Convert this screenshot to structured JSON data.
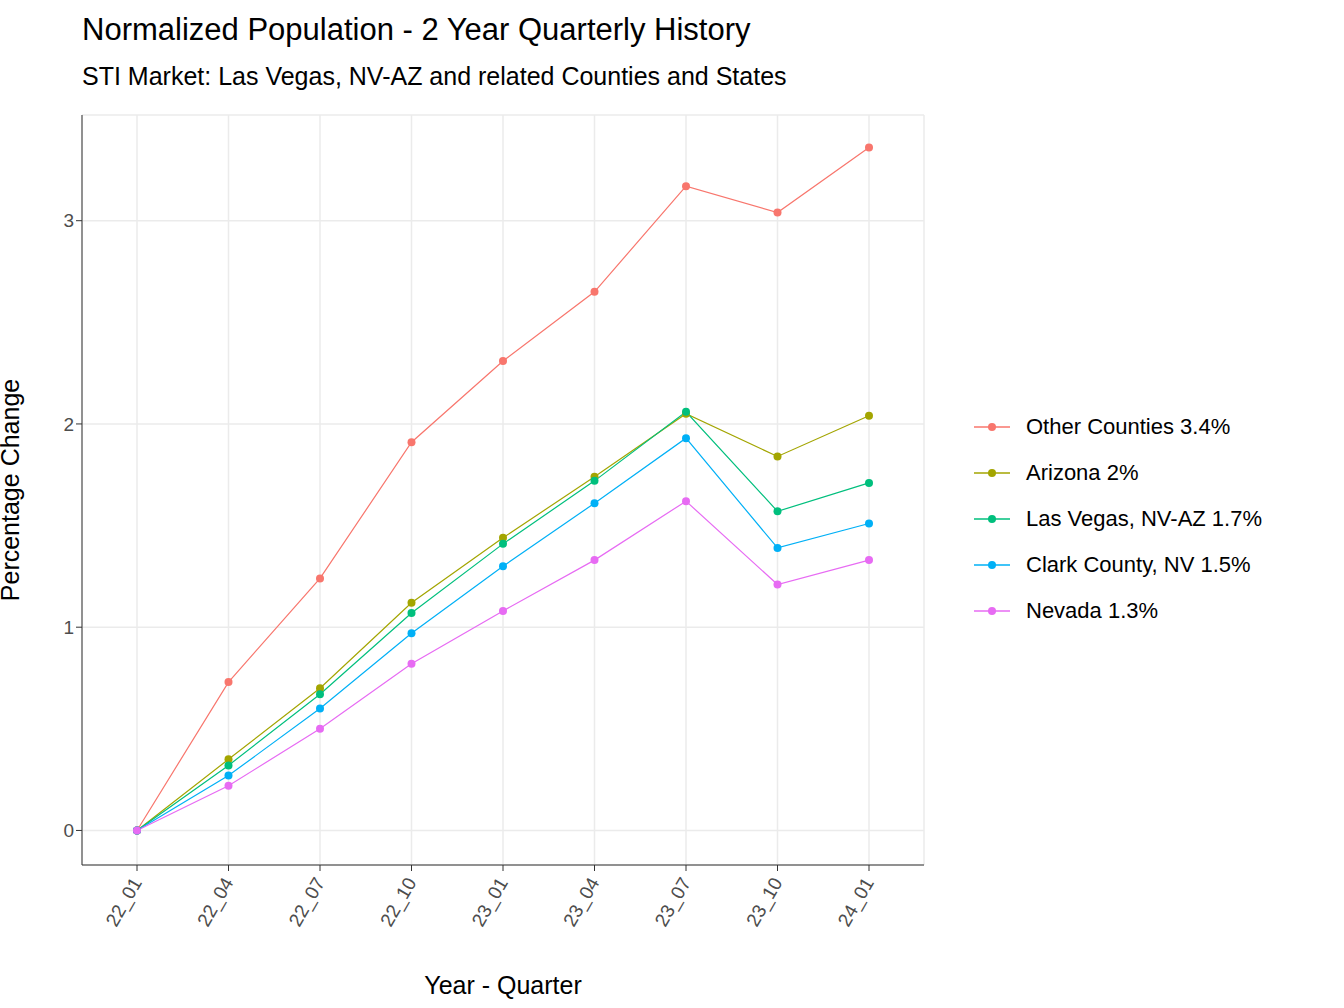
{
  "chart_data": {
    "type": "line",
    "title": "Normalized Population - 2 Year Quarterly History",
    "subtitle": "STI Market: Las Vegas, NV-AZ and related Counties and States",
    "x_label": "Year - Quarter",
    "y_label": "Percentage Change",
    "categories": [
      "22_01",
      "22_04",
      "22_07",
      "22_10",
      "23_01",
      "23_04",
      "23_07",
      "23_10",
      "24_01"
    ],
    "series": [
      {
        "name": "Other Counties 3.4%",
        "color": "#F8766D",
        "values": [
          0,
          0.73,
          1.24,
          1.91,
          2.31,
          2.65,
          3.17,
          3.04,
          3.36
        ]
      },
      {
        "name": "Arizona 2%",
        "color": "#A3A500",
        "values": [
          0,
          0.35,
          0.7,
          1.12,
          1.44,
          1.74,
          2.05,
          1.84,
          2.04
        ]
      },
      {
        "name": "Las Vegas, NV-AZ 1.7%",
        "color": "#00BF7D",
        "values": [
          0,
          0.32,
          0.67,
          1.07,
          1.41,
          1.72,
          2.06,
          1.57,
          1.71
        ]
      },
      {
        "name": "Clark County, NV 1.5%",
        "color": "#00B0F6",
        "values": [
          0,
          0.27,
          0.6,
          0.97,
          1.3,
          1.61,
          1.93,
          1.39,
          1.51
        ]
      },
      {
        "name": "Nevada 1.3%",
        "color": "#E76BF3",
        "values": [
          0,
          0.22,
          0.5,
          0.82,
          1.08,
          1.33,
          1.62,
          1.21,
          1.33
        ]
      }
    ],
    "ylim": [
      -0.17,
      3.52
    ],
    "yticks": [
      0,
      1,
      2,
      3
    ],
    "grid": true,
    "legend": "right",
    "marker": "circle"
  }
}
